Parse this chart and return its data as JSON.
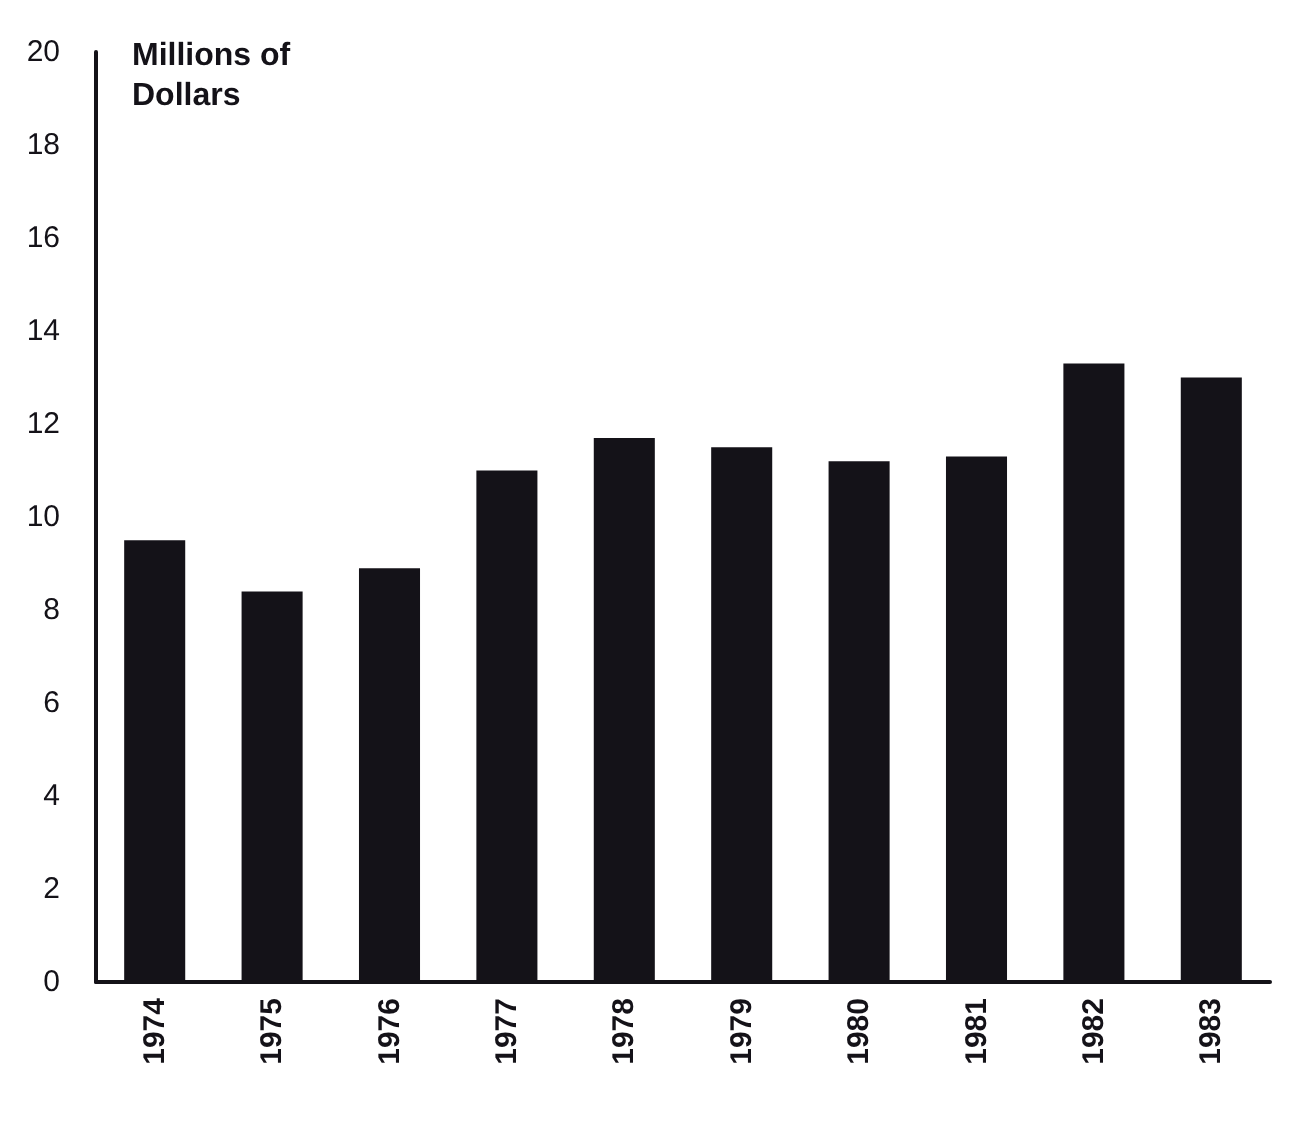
{
  "chart_data": {
    "type": "bar",
    "ylabel": "Millions of Dollars",
    "categories": [
      "1974",
      "1975",
      "1976",
      "1977",
      "1978",
      "1979",
      "1980",
      "1981",
      "1982",
      "1983"
    ],
    "values": [
      9.5,
      8.4,
      8.9,
      11.0,
      11.7,
      11.5,
      11.2,
      11.3,
      13.3,
      13.0
    ],
    "color": "#141218",
    "ylim": [
      0,
      20
    ],
    "yticks": [
      0,
      2,
      4,
      6,
      8,
      10,
      12,
      14,
      16,
      18,
      20
    ],
    "grid": false
  }
}
